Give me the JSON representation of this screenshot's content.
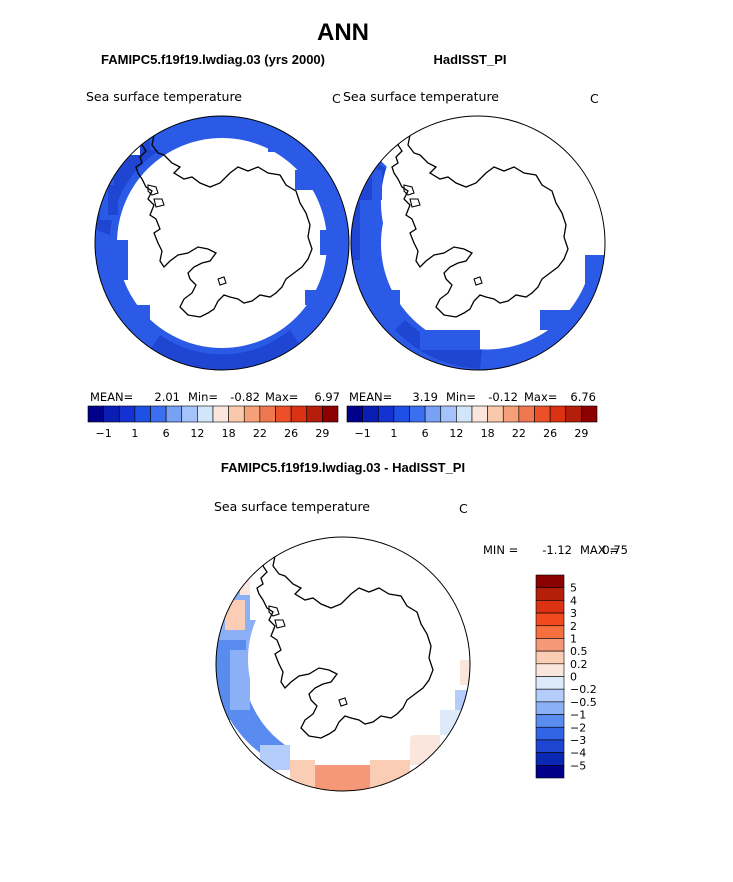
{
  "figure": {
    "title": "ANN"
  },
  "panels": [
    {
      "id": "model",
      "case_name": "FAMIPC5.f19f19.lwdiag.03 (yrs 2000)",
      "field_label": "Sea surface temperature",
      "units": "C",
      "stats": {
        "mean_label": "MEAN=",
        "mean": "2.01",
        "min_label": "Min=",
        "min": "-0.82",
        "max_label": "Max=",
        "max": "6.97"
      }
    },
    {
      "id": "obs",
      "case_name": "HadISST_PI",
      "field_label": "Sea surface temperature",
      "units": "C",
      "stats": {
        "mean_label": "MEAN=",
        "mean": "3.19",
        "min_label": "Min=",
        "min": "-0.12",
        "max_label": "Max=",
        "max": "6.76"
      }
    },
    {
      "id": "diff",
      "case_name": "FAMIPC5.f19f19.lwdiag.03 - HadISST_PI",
      "field_label": "Sea surface temperature",
      "units": "C",
      "stats": {
        "min_label": "MIN =",
        "min": "-1.12",
        "max_label": "MAX =",
        "max": "0.75"
      }
    }
  ],
  "chart_data": [
    {
      "type": "heatmap",
      "projection": "south-polar-stereographic",
      "title": "FAMIPC5.f19f19.lwdiag.03 (yrs 2000)",
      "variable": "Sea surface temperature",
      "units": "C",
      "mean": 2.01,
      "min": -0.82,
      "max": 6.97,
      "colorbar": {
        "orientation": "horizontal",
        "levels": [
          -1,
          1,
          6,
          12,
          18,
          22,
          26,
          29
        ],
        "tick_labels": [
          "-1",
          "1",
          "6",
          "12",
          "18",
          "22",
          "26",
          "29"
        ],
        "colors": [
          "#00008b",
          "#0a1eb4",
          "#1432d2",
          "#1e50e6",
          "#3c6ef0",
          "#78a0f5",
          "#a5c3fa",
          "#d2e6fa",
          "#fae6dc",
          "#fac8aa",
          "#f5a078",
          "#f07850",
          "#eb5028",
          "#dc3214",
          "#b41e0a",
          "#8b0000"
        ]
      }
    },
    {
      "type": "heatmap",
      "projection": "south-polar-stereographic",
      "title": "HadISST_PI",
      "variable": "Sea surface temperature",
      "units": "C",
      "mean": 3.19,
      "min": -0.12,
      "max": 6.76,
      "colorbar": {
        "orientation": "horizontal",
        "levels": [
          -1,
          1,
          6,
          12,
          18,
          22,
          26,
          29
        ],
        "tick_labels": [
          "-1",
          "1",
          "6",
          "12",
          "18",
          "22",
          "26",
          "29"
        ],
        "colors": [
          "#00008b",
          "#0a1eb4",
          "#1432d2",
          "#1e50e6",
          "#3c6ef0",
          "#78a0f5",
          "#a5c3fa",
          "#d2e6fa",
          "#fae6dc",
          "#fac8aa",
          "#f5a078",
          "#f07850",
          "#eb5028",
          "#dc3214",
          "#b41e0a",
          "#8b0000"
        ]
      }
    },
    {
      "type": "heatmap",
      "projection": "south-polar-stereographic",
      "title": "FAMIPC5.f19f19.lwdiag.03 - HadISST_PI",
      "variable": "Sea surface temperature",
      "units": "C",
      "min": -1.12,
      "max": 0.75,
      "colorbar": {
        "orientation": "vertical",
        "levels": [
          5,
          4,
          3,
          2,
          1,
          0.5,
          0.2,
          0,
          -0.2,
          -0.5,
          -1,
          -2,
          -3,
          -4,
          -5
        ],
        "tick_labels": [
          "5",
          "4",
          "3",
          "2",
          "1",
          "0.5",
          "0.2",
          "0",
          "−0.2",
          "−0.5",
          "−1",
          "−2",
          "−3",
          "−4",
          "−5"
        ],
        "colors": [
          "#8b0000",
          "#b41e0a",
          "#dc3214",
          "#f04a1e",
          "#f5703c",
          "#f59878",
          "#facdb4",
          "#fae6dc",
          "#dceafa",
          "#b4cdfa",
          "#8cb0f5",
          "#5a8cf0",
          "#3264e6",
          "#1e46d2",
          "#0a28b4",
          "#00008b"
        ]
      }
    }
  ]
}
